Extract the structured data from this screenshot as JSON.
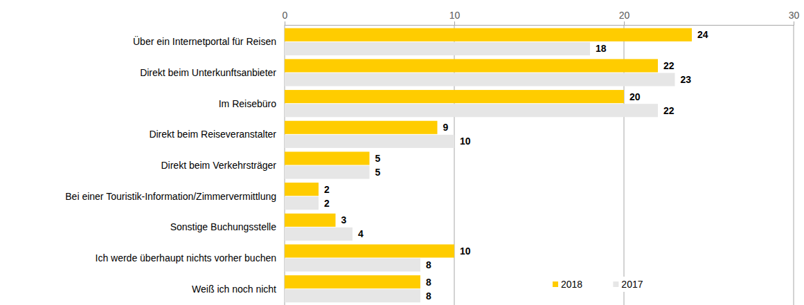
{
  "chart_data": {
    "type": "bar",
    "orientation": "horizontal",
    "categories": [
      "Über ein Internetportal für Reisen",
      "Direkt beim Unterkunftsanbieter",
      "Im Reisebüro",
      "Direkt beim Reiseveranstalter",
      "Direkt beim Verkehrsträger",
      "Bei einer Touristik-Information/Zimmervermittlung",
      "Sonstige Buchungsstelle",
      "Ich werde überhaupt nichts vorher buchen",
      "Weiß ich noch nicht"
    ],
    "series": [
      {
        "name": "2018",
        "color": "#FFCC00",
        "values": [
          24,
          22,
          20,
          9,
          5,
          2,
          3,
          10,
          8
        ]
      },
      {
        "name": "2017",
        "color": "#E6E6E6",
        "values": [
          18,
          23,
          22,
          10,
          5,
          2,
          4,
          8,
          8
        ]
      }
    ],
    "xlim": [
      0,
      30
    ],
    "xticks": [
      0,
      10,
      20,
      30
    ],
    "grid": true,
    "data_labels": true,
    "legend": "lower right"
  }
}
